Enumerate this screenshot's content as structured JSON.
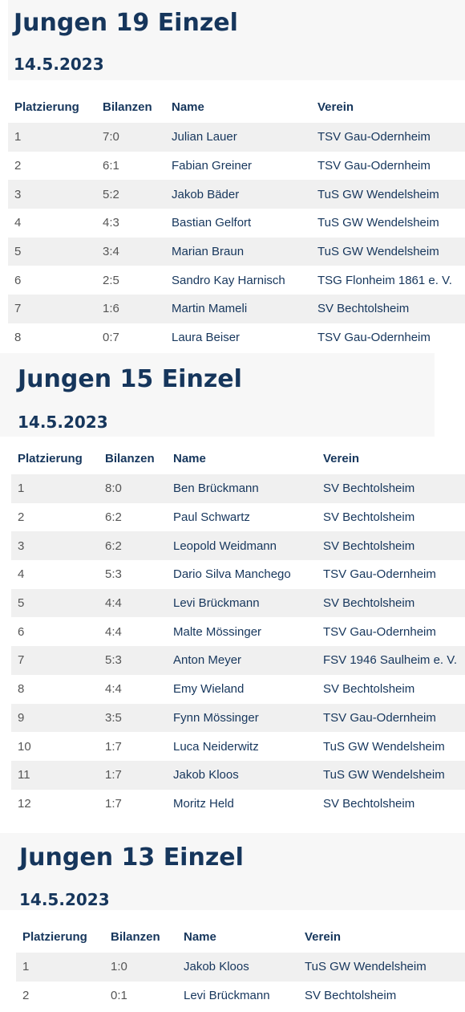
{
  "sections": [
    {
      "title": "Jungen 19 Einzel",
      "date": "14.5.2023",
      "headers": [
        "Platzierung",
        "Bilanzen",
        "Name",
        "Verein"
      ],
      "rows": [
        [
          "1",
          "7:0",
          "Julian Lauer",
          "TSV Gau-Odernheim"
        ],
        [
          "2",
          "6:1",
          "Fabian Greiner",
          "TSV Gau-Odernheim"
        ],
        [
          "3",
          "5:2",
          "Jakob Bäder",
          "TuS GW Wendelsheim"
        ],
        [
          "4",
          "4:3",
          "Bastian Gelfort",
          "TuS GW Wendelsheim"
        ],
        [
          "5",
          "3:4",
          "Marian Braun",
          "TuS GW Wendelsheim"
        ],
        [
          "6",
          "2:5",
          "Sandro Kay Harnisch",
          "TSG Flonheim 1861 e. V."
        ],
        [
          "7",
          "1:6",
          "Martin Mameli",
          "SV Bechtolsheim"
        ],
        [
          "8",
          "0:7",
          "Laura Beiser",
          "TSV Gau-Odernheim"
        ]
      ]
    },
    {
      "title": "Jungen 15 Einzel",
      "date": "14.5.2023",
      "headers": [
        "Platzierung",
        "Bilanzen",
        "Name",
        "Verein"
      ],
      "rows": [
        [
          "1",
          "8:0",
          "Ben Brückmann",
          "SV Bechtolsheim"
        ],
        [
          "2",
          "6:2",
          "Paul Schwartz",
          "SV Bechtolsheim"
        ],
        [
          "3",
          "6:2",
          "Leopold Weidmann",
          "SV Bechtolsheim"
        ],
        [
          "4",
          "5:3",
          "Dario Silva Manchego",
          "TSV Gau-Odernheim"
        ],
        [
          "5",
          "4:4",
          "Levi Brückmann",
          "SV Bechtolsheim"
        ],
        [
          "6",
          "4:4",
          "Malte Mössinger",
          "TSV Gau-Odernheim"
        ],
        [
          "7",
          "5:3",
          "Anton Meyer",
          "FSV 1946 Saulheim e. V."
        ],
        [
          "8",
          "4:4",
          "Emy Wieland",
          "SV Bechtolsheim"
        ],
        [
          "9",
          "3:5",
          "Fynn Mössinger",
          "TSV Gau-Odernheim"
        ],
        [
          "10",
          "1:7",
          "Luca Neiderwitz",
          "TuS GW Wendelsheim"
        ],
        [
          "11",
          "1:7",
          "Jakob Kloos",
          "TuS GW Wendelsheim"
        ],
        [
          "12",
          "1:7",
          "Moritz Held",
          "SV Bechtolsheim"
        ]
      ]
    },
    {
      "title": "Jungen 13 Einzel",
      "date": "14.5.2023",
      "headers": [
        "Platzierung",
        "Bilanzen",
        "Name",
        "Verein"
      ],
      "rows": [
        [
          "1",
          "1:0",
          "Jakob Kloos",
          "TuS GW Wendelsheim"
        ],
        [
          "2",
          "0:1",
          "Levi Brückmann",
          "SV Bechtolsheim"
        ]
      ]
    }
  ]
}
